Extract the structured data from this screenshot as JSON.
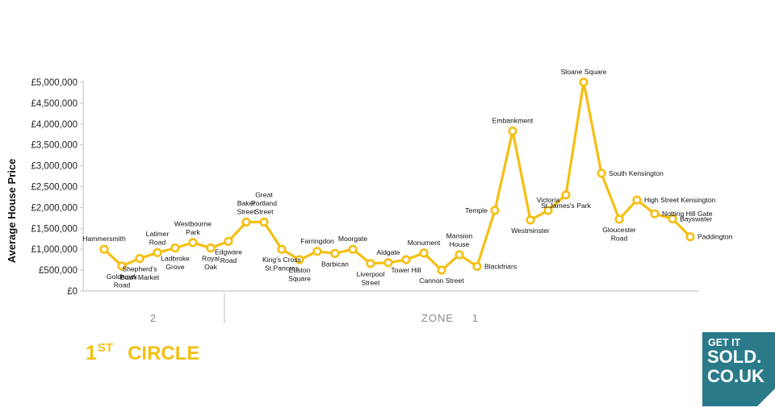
{
  "chart_data": {
    "type": "line",
    "ylabel": "Average House Price",
    "ylim": [
      0,
      5000000
    ],
    "yticks": [
      {
        "v": 0,
        "label": "£0"
      },
      {
        "v": 500000,
        "label": "£500,000"
      },
      {
        "v": 1000000,
        "label": "£1,000,000"
      },
      {
        "v": 1500000,
        "label": "£1,500,000"
      },
      {
        "v": 2000000,
        "label": "£2,000,000"
      },
      {
        "v": 2500000,
        "label": "£2,500,000"
      },
      {
        "v": 3000000,
        "label": "£3,000,000"
      },
      {
        "v": 3500000,
        "label": "£3,500,000"
      },
      {
        "v": 4000000,
        "label": "£4,000,000"
      },
      {
        "v": 4500000,
        "label": "£4,500,000"
      },
      {
        "v": 5000000,
        "label": "£5,000,000"
      }
    ],
    "line_color": "#f5bf12",
    "series": [
      {
        "values": [
          {
            "station": "Hammersmith",
            "value": 1000000
          },
          {
            "station": "Goldhawk Road",
            "value": 600000
          },
          {
            "station": "Shepherd's Bush Market",
            "value": 780000
          },
          {
            "station": "Latimer Road",
            "value": 920000
          },
          {
            "station": "Ladbroke Grove",
            "value": 1030000
          },
          {
            "station": "Westbourne Park",
            "value": 1160000
          },
          {
            "station": "Royal Oak",
            "value": 1030000
          },
          {
            "station": "Edgware Road",
            "value": 1190000
          },
          {
            "station": "Baker Street",
            "value": 1650000
          },
          {
            "station": "Great Portland Street",
            "value": 1650000
          },
          {
            "station": "King's Cross St.Pancras",
            "value": 1000000
          },
          {
            "station": "Euston Square",
            "value": 750000
          },
          {
            "station": "Farringdon",
            "value": 950000
          },
          {
            "station": "Barbican",
            "value": 900000
          },
          {
            "station": "Moorgate",
            "value": 1000000
          },
          {
            "station": "Liverpool Street",
            "value": 660000
          },
          {
            "station": "Aldgate",
            "value": 680000
          },
          {
            "station": "Tower Hill",
            "value": 750000
          },
          {
            "station": "Monument",
            "value": 910000
          },
          {
            "station": "Cannon Street",
            "value": 500000
          },
          {
            "station": "Mansion House",
            "value": 870000
          },
          {
            "station": "Blackfriars",
            "value": 590000
          },
          {
            "station": "Temple",
            "value": 1930000
          },
          {
            "station": "Embankment",
            "value": 3830000
          },
          {
            "station": "Westminster",
            "value": 1700000
          },
          {
            "station": "Victoria",
            "value": 1930000
          },
          {
            "station": "St.James's Park",
            "value": 2300000
          },
          {
            "station": "Sloane Square",
            "value": 5000000
          },
          {
            "station": "South Kensington",
            "value": 2820000
          },
          {
            "station": "Gloucester Road",
            "value": 1720000
          },
          {
            "station": "High Street Kensington",
            "value": 2180000
          },
          {
            "station": "Notting Hill Gate",
            "value": 1850000
          },
          {
            "station": "Bayswater",
            "value": 1730000
          },
          {
            "station": "Paddington",
            "value": 1300000
          }
        ]
      }
    ],
    "labels": [
      {
        "lines": [
          "Hammersmith"
        ],
        "pos": "above"
      },
      {
        "lines": [
          "Goldhawk",
          "Road"
        ],
        "pos": "below"
      },
      {
        "lines": [
          "Shepherd's",
          "Bush Market"
        ],
        "pos": "below"
      },
      {
        "lines": [
          "Latimer",
          "Road"
        ],
        "pos": "above"
      },
      {
        "lines": [
          "Ladbroke",
          "Grove"
        ],
        "pos": "below"
      },
      {
        "lines": [
          "Westbourne",
          "Park"
        ],
        "pos": "above"
      },
      {
        "lines": [
          "Royal",
          "Oak"
        ],
        "pos": "below"
      },
      {
        "lines": [
          "Edgware",
          "Road"
        ],
        "pos": "below"
      },
      {
        "lines": [
          "Baker",
          "Street"
        ],
        "pos": "above"
      },
      {
        "lines": [
          "Great",
          "Portland",
          "Street"
        ],
        "pos": "above"
      },
      {
        "lines": [
          "King's Cross",
          "St.Pancras"
        ],
        "pos": "below"
      },
      {
        "lines": [
          "Euston",
          "Square"
        ],
        "pos": "below"
      },
      {
        "lines": [
          "Farringdon"
        ],
        "pos": "above"
      },
      {
        "lines": [
          "Barbican"
        ],
        "pos": "below"
      },
      {
        "lines": [
          "Moorgate"
        ],
        "pos": "above"
      },
      {
        "lines": [
          "Liverpool",
          "Street"
        ],
        "pos": "below"
      },
      {
        "lines": [
          "Aldgate"
        ],
        "pos": "above"
      },
      {
        "lines": [
          "Tower Hill"
        ],
        "pos": "below"
      },
      {
        "lines": [
          "Monument"
        ],
        "pos": "above"
      },
      {
        "lines": [
          "Cannon Street"
        ],
        "pos": "below"
      },
      {
        "lines": [
          "Mansion",
          "House"
        ],
        "pos": "above"
      },
      {
        "lines": [
          "Blackfriars"
        ],
        "pos": "right"
      },
      {
        "lines": [
          "Temple"
        ],
        "pos": "left"
      },
      {
        "lines": [
          "Embankment"
        ],
        "pos": "above"
      },
      {
        "lines": [
          "Westminster"
        ],
        "pos": "below"
      },
      {
        "lines": [
          "Victoria"
        ],
        "pos": "above"
      },
      {
        "lines": [
          "St.James's Park"
        ],
        "pos": "below"
      },
      {
        "lines": [
          "Sloane Square"
        ],
        "pos": "above"
      },
      {
        "lines": [
          "South Kensington"
        ],
        "pos": "right"
      },
      {
        "lines": [
          "Gloucester",
          "Road"
        ],
        "pos": "below"
      },
      {
        "lines": [
          "High Street Kensington"
        ],
        "pos": "right"
      },
      {
        "lines": [
          "Notting Hill Gate"
        ],
        "pos": "right"
      },
      {
        "lines": [
          "Bayswater"
        ],
        "pos": "right"
      },
      {
        "lines": [
          "Paddington"
        ],
        "pos": "right"
      }
    ],
    "zones": [
      {
        "label": "2"
      },
      {
        "label": "ZONE"
      },
      {
        "label": "1"
      }
    ]
  },
  "title": {
    "number": "1",
    "suffix": "ST",
    "word": "CIRCLE"
  },
  "logo": {
    "line1": "GET IT",
    "line2": "SOLD.",
    "line3": "CO.UK",
    "color": "#2a7a8a"
  }
}
